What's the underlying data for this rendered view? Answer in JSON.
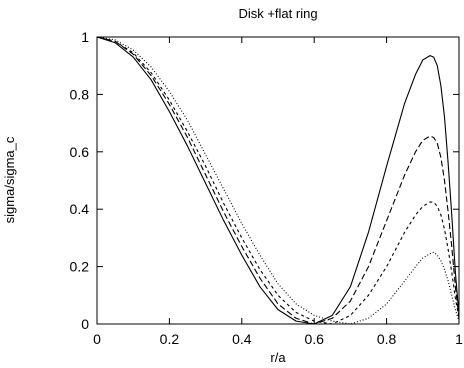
{
  "chart_data": {
    "type": "line",
    "title": "Disk +flat ring",
    "xlabel": "r/a",
    "ylabel": "sigma/sigma_c",
    "xlim": [
      0,
      1
    ],
    "ylim": [
      0,
      1
    ],
    "xticks": [
      "0",
      "0.2",
      "0.4",
      "0.6",
      "0.8",
      "1"
    ],
    "yticks": [
      "0",
      "0.2",
      "0.4",
      "0.6",
      "0.8",
      "1"
    ],
    "grid": false,
    "legend": "none",
    "series": [
      {
        "style": "solid",
        "x": [
          0,
          0.05,
          0.1,
          0.15,
          0.2,
          0.25,
          0.3,
          0.35,
          0.4,
          0.45,
          0.5,
          0.55,
          0.6,
          0.65,
          0.7,
          0.75,
          0.8,
          0.85,
          0.88,
          0.9,
          0.92,
          0.93,
          0.94,
          0.95,
          0.96,
          0.97,
          0.98,
          0.99,
          1.0
        ],
        "y": [
          1.0,
          0.98,
          0.93,
          0.85,
          0.74,
          0.62,
          0.49,
          0.36,
          0.24,
          0.13,
          0.05,
          0.01,
          0.0,
          0.03,
          0.13,
          0.32,
          0.55,
          0.77,
          0.87,
          0.92,
          0.935,
          0.93,
          0.9,
          0.83,
          0.72,
          0.56,
          0.38,
          0.18,
          0.03
        ]
      },
      {
        "style": "dashed",
        "x": [
          0,
          0.05,
          0.1,
          0.15,
          0.2,
          0.25,
          0.3,
          0.35,
          0.4,
          0.45,
          0.5,
          0.55,
          0.6,
          0.65,
          0.7,
          0.75,
          0.8,
          0.85,
          0.88,
          0.9,
          0.92,
          0.93,
          0.94,
          0.95,
          0.96,
          0.97,
          0.98,
          0.99,
          1.0
        ],
        "y": [
          1.0,
          0.985,
          0.94,
          0.865,
          0.765,
          0.65,
          0.52,
          0.39,
          0.27,
          0.16,
          0.07,
          0.02,
          0.0,
          0.02,
          0.08,
          0.2,
          0.36,
          0.52,
          0.6,
          0.64,
          0.655,
          0.65,
          0.63,
          0.58,
          0.5,
          0.39,
          0.27,
          0.13,
          0.02
        ]
      },
      {
        "style": "short-dashed",
        "x": [
          0,
          0.05,
          0.1,
          0.15,
          0.2,
          0.25,
          0.3,
          0.35,
          0.4,
          0.45,
          0.5,
          0.55,
          0.6,
          0.65,
          0.7,
          0.75,
          0.8,
          0.85,
          0.88,
          0.9,
          0.92,
          0.93,
          0.94,
          0.95,
          0.96,
          0.97,
          0.98,
          0.99,
          1.0
        ],
        "y": [
          1.0,
          0.985,
          0.945,
          0.875,
          0.78,
          0.67,
          0.55,
          0.42,
          0.3,
          0.19,
          0.1,
          0.04,
          0.01,
          0.0,
          0.03,
          0.1,
          0.2,
          0.32,
          0.38,
          0.41,
          0.425,
          0.425,
          0.41,
          0.38,
          0.33,
          0.26,
          0.18,
          0.09,
          0.02
        ]
      },
      {
        "style": "dotted",
        "x": [
          0,
          0.05,
          0.1,
          0.15,
          0.2,
          0.25,
          0.3,
          0.35,
          0.4,
          0.45,
          0.5,
          0.55,
          0.6,
          0.65,
          0.7,
          0.75,
          0.8,
          0.85,
          0.88,
          0.9,
          0.92,
          0.93,
          0.94,
          0.95,
          0.96,
          0.97,
          0.98,
          0.99,
          1.0
        ],
        "y": [
          1.0,
          0.99,
          0.955,
          0.895,
          0.81,
          0.71,
          0.59,
          0.47,
          0.35,
          0.24,
          0.14,
          0.07,
          0.03,
          0.01,
          0.0,
          0.02,
          0.07,
          0.15,
          0.2,
          0.23,
          0.245,
          0.25,
          0.24,
          0.22,
          0.19,
          0.15,
          0.1,
          0.05,
          0.01
        ]
      }
    ]
  }
}
